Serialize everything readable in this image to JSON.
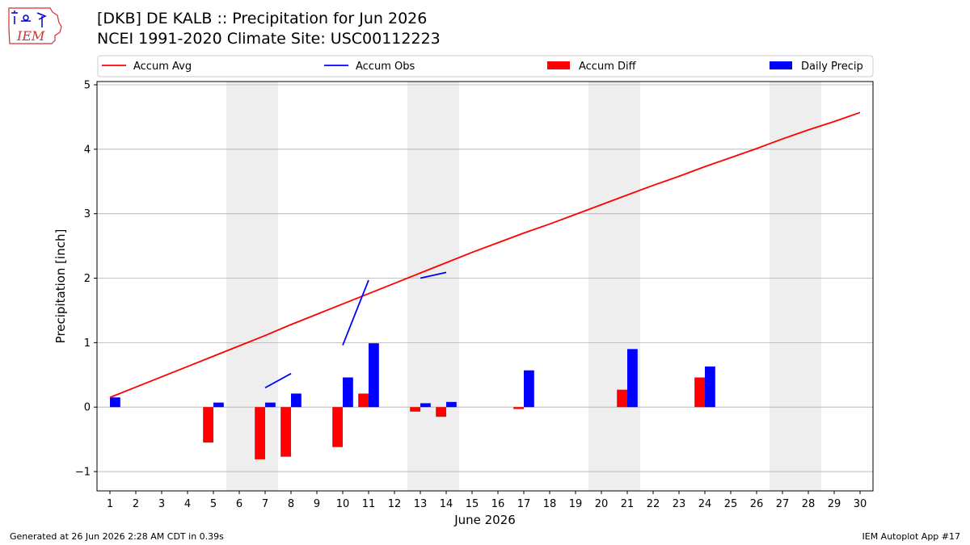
{
  "header": {
    "title_line1": "[DKB] DE KALB :: Precipitation for Jun 2026",
    "title_line2": "NCEI 1991-2020 Climate Site: USC00112223"
  },
  "logo": {
    "text": "IEM"
  },
  "footer": {
    "left": "Generated at 26 Jun 2026 2:28 AM CDT in 0.39s",
    "right": "IEM Autoplot App #17"
  },
  "chart_data": {
    "type": "bar",
    "xlabel": "June 2026",
    "ylabel": "Precipitation [inch]",
    "xlim": [
      0.5,
      30.5
    ],
    "ylim": [
      -1.3,
      5.05
    ],
    "yticks": [
      -1,
      0,
      1,
      2,
      3,
      4,
      5
    ],
    "ytick_labels": [
      "−1",
      "0",
      "1",
      "2",
      "3",
      "4",
      "5"
    ],
    "xticks": [
      1,
      2,
      3,
      4,
      5,
      6,
      7,
      8,
      9,
      10,
      11,
      12,
      13,
      14,
      15,
      16,
      17,
      18,
      19,
      20,
      21,
      22,
      23,
      24,
      25,
      26,
      27,
      28,
      29,
      30
    ],
    "grid": "horizontal",
    "legend_position": "top",
    "weekend_bands": [
      [
        5.5,
        7.5
      ],
      [
        12.5,
        14.5
      ],
      [
        19.5,
        21.5
      ],
      [
        26.5,
        28.5
      ]
    ],
    "colors": {
      "avg": "#ff0000",
      "obs": "#0000ff",
      "diff": "#ff0000",
      "daily": "#0000ff",
      "band": "#eeeeee",
      "grid": "#b0b0b0"
    },
    "legend": [
      {
        "label": "Accum Avg",
        "kind": "line",
        "color": "#ff0000"
      },
      {
        "label": "Accum Obs",
        "kind": "line",
        "color": "#0000ff"
      },
      {
        "label": "Accum Diff",
        "kind": "bar",
        "color": "#ff0000"
      },
      {
        "label": "Daily Precip",
        "kind": "bar",
        "color": "#0000ff"
      }
    ],
    "accum_avg": {
      "x": [
        1,
        2,
        3,
        4,
        5,
        6,
        7,
        8,
        9,
        10,
        11,
        12,
        13,
        14,
        15,
        16,
        17,
        18,
        19,
        20,
        21,
        22,
        23,
        24,
        25,
        26,
        27,
        28,
        29,
        30
      ],
      "y": [
        0.15,
        0.31,
        0.47,
        0.63,
        0.79,
        0.95,
        1.11,
        1.28,
        1.44,
        1.6,
        1.76,
        1.92,
        2.08,
        2.24,
        2.4,
        2.55,
        2.7,
        2.84,
        2.99,
        3.14,
        3.29,
        3.44,
        3.58,
        3.73,
        3.87,
        4.01,
        4.16,
        4.3,
        4.43,
        4.57
      ]
    },
    "accum_obs": [
      {
        "x": [
          7,
          8
        ],
        "y": [
          0.3,
          0.52
        ]
      },
      {
        "x": [
          10,
          11
        ],
        "y": [
          0.96,
          1.97
        ]
      },
      {
        "x": [
          13,
          14
        ],
        "y": [
          2.0,
          2.09
        ]
      }
    ],
    "accum_diff": [
      {
        "day": 5,
        "value": -0.55
      },
      {
        "day": 7,
        "value": -0.81
      },
      {
        "day": 8,
        "value": -0.77
      },
      {
        "day": 10,
        "value": -0.62
      },
      {
        "day": 11,
        "value": 0.21
      },
      {
        "day": 13,
        "value": -0.07
      },
      {
        "day": 14,
        "value": -0.15
      },
      {
        "day": 17,
        "value": -0.03
      },
      {
        "day": 21,
        "value": 0.27
      },
      {
        "day": 24,
        "value": 0.46
      }
    ],
    "daily_precip": [
      {
        "day": 1,
        "value": 0.15
      },
      {
        "day": 5,
        "value": 0.07
      },
      {
        "day": 7,
        "value": 0.07
      },
      {
        "day": 8,
        "value": 0.21
      },
      {
        "day": 10,
        "value": 0.46
      },
      {
        "day": 11,
        "value": 0.99
      },
      {
        "day": 13,
        "value": 0.06
      },
      {
        "day": 14,
        "value": 0.08
      },
      {
        "day": 17,
        "value": 0.57
      },
      {
        "day": 21,
        "value": 0.9
      },
      {
        "day": 24,
        "value": 0.63
      }
    ]
  }
}
